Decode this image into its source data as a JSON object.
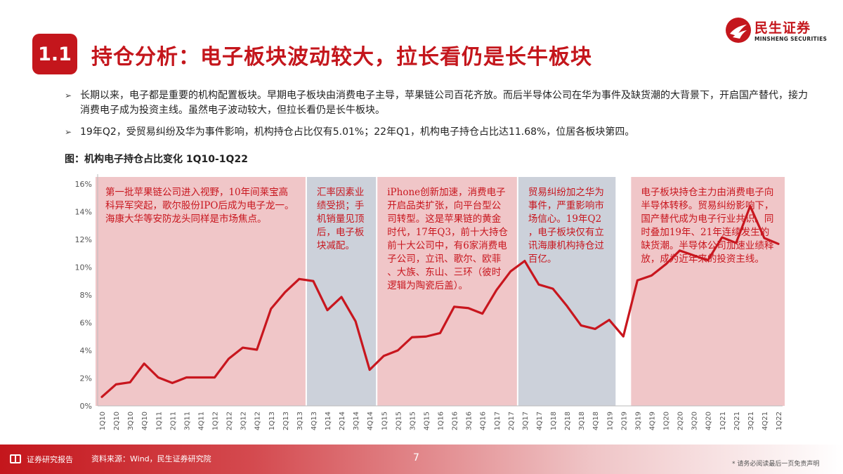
{
  "header": {
    "badge": "1.1",
    "title": "持仓分析：电子板块波动较大，拉长看仍是长牛板块",
    "logo_cn": "民生证券",
    "logo_en": "MINSHENG SECURITIES"
  },
  "bullets": [
    "长期以来，电子都是重要的机构配置板块。早期电子板块由消费电子主导，苹果链公司百花齐放。而后半导体公司在华为事件及缺货潮的大背景下，开启国产替代，接力消费电子成为投资主线。虽然电子波动较大，但拉长看仍是长牛板块。",
    "19年Q2，受贸易纠纷及华为事件影响，机构持仓占比仅有5.01%；22年Q1，机构电子持仓占比达11.68%，位居各板块第四。"
  ],
  "figure_title": "图：机构电子持仓占比变化 1Q10-1Q22",
  "colors": {
    "brand": "#c4161c",
    "line": "#c8161e",
    "pink_band": "#f0c6c8",
    "gray_band": "#ccd1da",
    "annotation": "#c8161e"
  },
  "chart_data": {
    "type": "line",
    "categories": [
      "1Q10",
      "2Q10",
      "3Q10",
      "4Q10",
      "1Q11",
      "2Q11",
      "3Q11",
      "4Q11",
      "1Q12",
      "2Q12",
      "3Q12",
      "4Q12",
      "1Q13",
      "2Q13",
      "3Q13",
      "4Q13",
      "1Q14",
      "2Q14",
      "3Q14",
      "4Q14",
      "1Q15",
      "2Q15",
      "3Q15",
      "4Q15",
      "1Q16",
      "2Q16",
      "3Q16",
      "4Q16",
      "1Q17",
      "2Q17",
      "3Q17",
      "4Q17",
      "1Q18",
      "2Q18",
      "3Q18",
      "4Q18",
      "1Q19",
      "2Q19",
      "3Q19",
      "4Q19",
      "1Q20",
      "2Q20",
      "3Q20",
      "4Q20",
      "1Q21",
      "2Q21",
      "3Q21",
      "4Q21",
      "1Q22"
    ],
    "series": [
      {
        "values": [
          0.65,
          1.55,
          1.7,
          3.05,
          2.05,
          1.65,
          2.05,
          2.05,
          2.05,
          3.4,
          4.2,
          4.05,
          7.0,
          8.2,
          9.15,
          9.0,
          6.9,
          7.85,
          6.1,
          2.6,
          3.6,
          4.0,
          4.95,
          5.0,
          5.25,
          7.15,
          7.05,
          6.65,
          8.35,
          9.7,
          10.45,
          8.75,
          8.45,
          7.2,
          5.8,
          5.55,
          6.2,
          5.01,
          9.05,
          9.4,
          10.2,
          11.2,
          10.85,
          10.5,
          12.15,
          11.75,
          14.4,
          12.1,
          11.68
        ]
      }
    ],
    "ylim": [
      0,
      16
    ],
    "yticks": [
      "0%",
      "2%",
      "4%",
      "6%",
      "8%",
      "10%",
      "12%",
      "14%",
      "16%"
    ],
    "grid": false,
    "bands": [
      {
        "from": "1Q10",
        "to": "3Q13",
        "color": "pink",
        "text": "第一批苹果链公司进入视野，10年间莱宝高科异军突起，歌尔股份IPO后成为电子龙一。海康大华等安防龙头同样是市场焦点。"
      },
      {
        "from": "4Q13",
        "to": "4Q14",
        "color": "gray",
        "text": "汇率因素业绩受损；手机销量见顶后，电子板块减配。"
      },
      {
        "from": "1Q15",
        "to": "2Q17",
        "color": "pink",
        "text": "iPhone创新加速，消费电子开启品类扩张，向平台型公司转型。这是苹果链的黄金时代，17年Q3，前十大持仓前十大公司中，有6家消费电子公司，立讯、歌尔、欧菲、大族、东山、三环（彼时逻辑为陶瓷后盖）。"
      },
      {
        "from": "3Q17",
        "to": "1Q19",
        "color": "gray",
        "text": "贸易纠纷加之华为事件，严重影响市场信心。19年Q2，电子板块仅有立讯海康机构持仓过百亿。"
      },
      {
        "from": "3Q19",
        "to": "1Q22",
        "color": "pink",
        "text": "电子板块持仓主力由消费电子向半导体转移。贸易纠纷影响下，国产替代成为电子行业共识。同时叠加19年、21年连续发生的缺货潮。半导体公司加速业绩释放，成为近年来的投资主线。"
      }
    ]
  },
  "footer": {
    "left": "证券研究报告",
    "source": "资料来源：Wind，民生证券研究院",
    "page": "7",
    "disclaimer": "* 请务必阅读最后一页免责声明"
  }
}
